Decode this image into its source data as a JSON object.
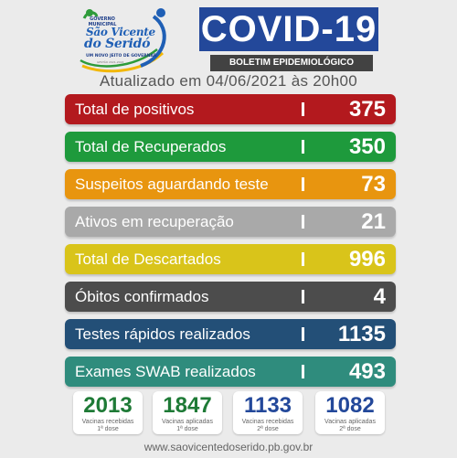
{
  "header": {
    "logo": {
      "line1": "GOVERNO MUNICIPAL",
      "line2": "São Vicente",
      "line3": "do Seridó",
      "slogan": "UM NOVO JEITO DE GOVERNAR",
      "slogan2": "GESTÃO 2021-2024"
    },
    "title": "COVID-19",
    "subtitle": "BOLETIM EPIDEMIOLÓGICO",
    "updated": "Atualizado em 04/06/2021 às 20h00"
  },
  "stats": [
    {
      "label": "Total de positivos",
      "value": "375",
      "color": "#b3191e"
    },
    {
      "label": "Total de Recuperados",
      "value": "350",
      "color": "#1e9a3c"
    },
    {
      "label": "Suspeitos aguardando teste",
      "value": "73",
      "color": "#e8950f"
    },
    {
      "label": "Ativos em recuperação",
      "value": "21",
      "color": "#a9a9a9"
    },
    {
      "label": "Total de Descartados",
      "value": "996",
      "color": "#d9c41a"
    },
    {
      "label": "Óbitos confirmados",
      "value": "4",
      "color": "#4c4c4c"
    },
    {
      "label": "Testes rápidos realizados",
      "value": "1135",
      "color": "#234f77"
    },
    {
      "label": "Exames SWAB realizados",
      "value": "493",
      "color": "#2f8c7d"
    }
  ],
  "vaccines": [
    {
      "number": "2013",
      "line1": "Vacinas recebidas",
      "line2": "1ª dose",
      "color": "#1e7a36"
    },
    {
      "number": "1847",
      "line1": "Vacinas aplicadas",
      "line2": "1ª dose",
      "color": "#1e7a36"
    },
    {
      "number": "1133",
      "line1": "Vacinas recebidas",
      "line2": "2ª dose",
      "color": "#23489a"
    },
    {
      "number": "1082",
      "line1": "Vacinas aplicadas",
      "line2": "2ª dose",
      "color": "#23489a"
    }
  ],
  "footer": {
    "website": "www.saovicentedoserido.pb.gov.br"
  }
}
